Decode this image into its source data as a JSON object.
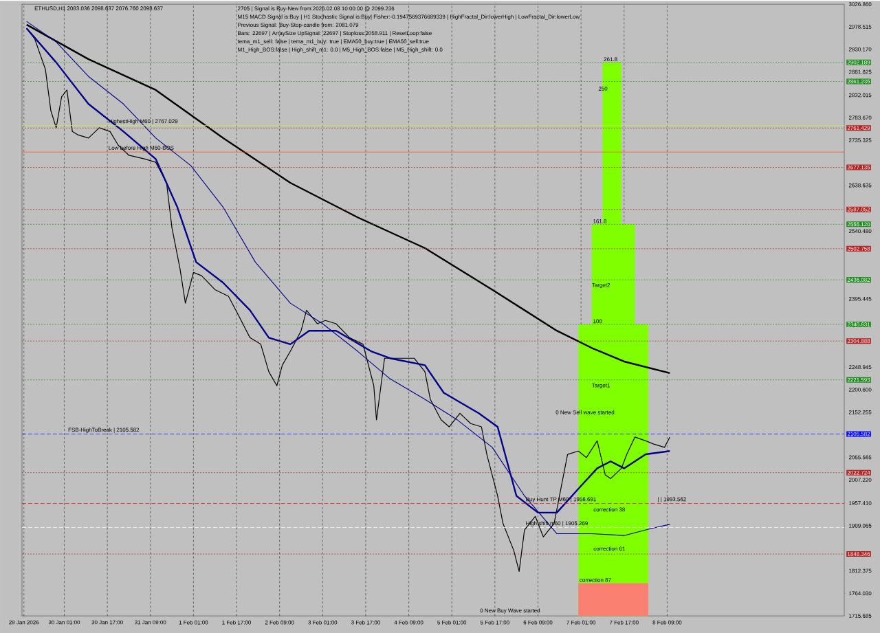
{
  "chart_data": {
    "type": "line",
    "title": "ETHUSD,H1  2083.036 2098.637 2076.760 2098.637",
    "xlim": [
      "2026-01-29T09:18",
      "2026-02-11T02:48"
    ],
    "ylim": [
      1715.685,
      3026.86
    ],
    "xticks": [
      {
        "value": "2026-01-29T10:00",
        "label": "29 Jan 2026"
      },
      {
        "value": "2026-01-30T01:00",
        "label": "30 Jan 01:00"
      },
      {
        "value": "2026-01-30T17:00",
        "label": "30 Jan 17:00"
      },
      {
        "value": "2026-01-31T09:00",
        "label": "31 Jan 09:00"
      },
      {
        "value": "2026-02-01T01:00",
        "label": "1 Feb 01:00"
      },
      {
        "value": "2026-02-01T17:00",
        "label": "1 Feb 17:00"
      },
      {
        "value": "2026-02-02T09:00",
        "label": "2 Feb 09:00"
      },
      {
        "value": "2026-02-03T01:00",
        "label": "3 Feb 01:00"
      },
      {
        "value": "2026-02-03T17:00",
        "label": "3 Feb 17:00"
      },
      {
        "value": "2026-02-04T09:00",
        "label": "4 Feb 09:00"
      },
      {
        "value": "2026-02-05T01:00",
        "label": "5 Feb 01:00"
      },
      {
        "value": "2026-02-05T17:00",
        "label": "5 Feb 17:00"
      },
      {
        "value": "2026-02-06T09:00",
        "label": "6 Feb 09:00"
      },
      {
        "value": "2026-02-07T01:00",
        "label": "7 Feb 01:00"
      },
      {
        "value": "2026-02-07T17:00",
        "label": "7 Feb 17:00"
      },
      {
        "value": "2026-02-08T09:00",
        "label": "8 Feb 09:00"
      }
    ],
    "yticks": [
      1715.685,
      {
        "value": 1764.03,
        "label": "1764.030"
      },
      1812.375,
      1909.065,
      {
        "value": 1957.41,
        "label": "1957.410"
      },
      {
        "value": 2007.22,
        "label": "2007.220"
      },
      2055.565,
      2152.255,
      {
        "value": 2200.6,
        "label": "2200.600"
      },
      2248.945,
      2395.445,
      {
        "value": 2540.48,
        "label": "2540.480"
      },
      2638.635,
      2735.325,
      {
        "value": 2783.67,
        "label": "2783.670"
      },
      2832.015,
      2881.825,
      {
        "value": 2930.17,
        "label": "2930.170"
      },
      2978.515,
      {
        "value": 3026.86,
        "label": "3026.860"
      }
    ],
    "grid": "x",
    "marker": "none",
    "series": [
      {
        "type": "area",
        "color": "#7fff00",
        "x": [
          "2026-02-07T00:00",
          "2026-02-07T05:00",
          "2026-02-07T05:00",
          "2026-02-07T09:00",
          "2026-02-07T09:00",
          "2026-02-07T16:00",
          "2026-02-07T16:00",
          "2026-02-07T21:00",
          "2026-02-07T21:00",
          "2026-02-08T02:00"
        ],
        "values": [
          2340.631,
          2340.631,
          2555.12,
          2555.12,
          2902.189,
          2902.189,
          2555.12,
          2555.12,
          2340.631,
          2340.631
        ]
      },
      {
        "type": "area",
        "color": "#fa8072",
        "x": [
          "2026-02-07T00:00",
          "2026-02-08T02:00"
        ],
        "values": [
          1786,
          1786
        ]
      },
      {
        "color": "#000000",
        "x": [
          "2026-01-29T11:00",
          "2026-01-29T14:00",
          "2026-01-29T18:00",
          "2026-01-29T20:00",
          "2026-01-29T22:00",
          "2026-01-30T00:00",
          "2026-01-30T02:00",
          "2026-01-30T04:00",
          "2026-01-30T06:00",
          "2026-01-30T10:00",
          "2026-01-30T14:00",
          "2026-01-30T18:00",
          "2026-01-30T21:00",
          "2026-01-31T01:00",
          "2026-01-31T07:00",
          "2026-01-31T11:00",
          "2026-01-31T15:00",
          "2026-01-31T17:00",
          "2026-01-31T20:00",
          "2026-01-31T22:00",
          "2026-02-01T01:00",
          "2026-02-01T04:00",
          "2026-02-01T09:00",
          "2026-02-01T14:00",
          "2026-02-01T18:00",
          "2026-02-01T22:00",
          "2026-02-02T02:00",
          "2026-02-02T05:00",
          "2026-02-02T08:00",
          "2026-02-02T10:00",
          "2026-02-02T13:00",
          "2026-02-02T17:00",
          "2026-02-02T19:00",
          "2026-02-02T23:00",
          "2026-02-03T02:00",
          "2026-02-03T06:00",
          "2026-02-03T11:00",
          "2026-02-03T16:00",
          "2026-02-03T20:00",
          "2026-02-03T21:00",
          "2026-02-04T00:00",
          "2026-02-04T05:00",
          "2026-02-04T11:00",
          "2026-02-04T15:00",
          "2026-02-04T17:00",
          "2026-02-04T21:00",
          "2026-02-05T00:00",
          "2026-02-05T04:00",
          "2026-02-05T08:00",
          "2026-02-05T12:00",
          "2026-02-05T14:00",
          "2026-02-05T18:00",
          "2026-02-05T20:00",
          "2026-02-06T00:00",
          "2026-02-06T02:00",
          "2026-02-06T04:00",
          "2026-02-06T08:00",
          "2026-02-06T11:00",
          "2026-02-06T15:00",
          "2026-02-06T18:00",
          "2026-02-06T20:00",
          "2026-02-07T00:00",
          "2026-02-07T03:00",
          "2026-02-07T07:00",
          "2026-02-07T10:00",
          "2026-02-07T12:00",
          "2026-02-07T16:00",
          "2026-02-07T18:00",
          "2026-02-07T21:00",
          "2026-02-08T01:00",
          "2026-02-08T04:00",
          "2026-02-08T08:00",
          "2026-02-08T10:00"
        ],
        "values": [
          2975,
          2953,
          2887,
          2799,
          2762,
          2828,
          2843,
          2754,
          2747,
          2740,
          2762,
          2754,
          2725,
          2703,
          2695,
          2688,
          2644,
          2548,
          2460,
          2386,
          2452,
          2445,
          2415,
          2401,
          2357,
          2312,
          2298,
          2239,
          2209,
          2253,
          2283,
          2327,
          2371,
          2342,
          2349,
          2342,
          2312,
          2298,
          2209,
          2136,
          2268,
          2268,
          2268,
          2239,
          2180,
          2136,
          2121,
          2150,
          2128,
          2121,
          2062,
          1973,
          1914,
          1856,
          1811,
          1900,
          1929,
          1885,
          1914,
          2003,
          2062,
          2069,
          2055,
          2091,
          2018,
          2010,
          2032,
          2062,
          2099,
          2091,
          2084,
          2077,
          2099
        ]
      },
      {
        "color": "#000000",
        "x": [
          "2026-01-29T11:00",
          "2026-01-30T10:00",
          "2026-01-31T11:00",
          "2026-02-01T12:00",
          "2026-02-02T13:00",
          "2026-02-03T14:00",
          "2026-02-04T15:00",
          "2026-02-05T16:00",
          "2026-02-06T16:00",
          "2026-02-07T05:00",
          "2026-02-07T17:00",
          "2026-02-08T10:00"
        ],
        "values": [
          2983,
          2909,
          2843,
          2740,
          2644,
          2570,
          2504,
          2415,
          2327,
          2290,
          2261,
          2236
        ]
      },
      {
        "color": "#00008b",
        "x": [
          "2026-01-29T11:00",
          "2026-01-29T22:00",
          "2026-01-30T10:00",
          "2026-01-30T23:00",
          "2026-01-31T11:00",
          "2026-01-31T19:00",
          "2026-02-01T02:00",
          "2026-02-01T12:00",
          "2026-02-01T22:00",
          "2026-02-02T05:00",
          "2026-02-02T13:00",
          "2026-02-02T20:00",
          "2026-02-03T06:00",
          "2026-02-03T19:00",
          "2026-02-04T02:00",
          "2026-02-04T15:00",
          "2026-02-04T22:00",
          "2026-02-05T11:00",
          "2026-02-05T18:00",
          "2026-02-06T01:00",
          "2026-02-06T09:00",
          "2026-02-06T16:00",
          "2026-02-07T00:00",
          "2026-02-07T07:00",
          "2026-02-07T12:00",
          "2026-02-07T17:00",
          "2026-02-08T01:00",
          "2026-02-08T10:00"
        ],
        "values": [
          2975,
          2902,
          2813,
          2754,
          2695,
          2592,
          2474,
          2430,
          2371,
          2312,
          2298,
          2327,
          2327,
          2283,
          2268,
          2253,
          2194,
          2150,
          2121,
          1973,
          1937,
          1937,
          1988,
          2032,
          2047,
          2032,
          2062,
          2069
        ]
      },
      {
        "color": "#00008b",
        "x": [
          "2026-01-29T11:00",
          "2026-01-29T22:00",
          "2026-01-30T10:00",
          "2026-01-30T23:00",
          "2026-01-31T11:00",
          "2026-02-01T00:00",
          "2026-02-01T12:00",
          "2026-02-02T00:00",
          "2026-02-02T13:00",
          "2026-02-03T01:00",
          "2026-02-03T14:00",
          "2026-02-04T02:00",
          "2026-02-04T15:00",
          "2026-02-05T03:00",
          "2026-02-05T16:00",
          "2026-02-06T04:00",
          "2026-02-06T16:00",
          "2026-02-07T05:00",
          "2026-02-07T17:00",
          "2026-02-08T03:00",
          "2026-02-08T10:00"
        ],
        "values": [
          2990,
          2946,
          2872,
          2813,
          2740,
          2681,
          2592,
          2474,
          2386,
          2342,
          2283,
          2224,
          2180,
          2136,
          2077,
          1973,
          1892,
          1892,
          1888,
          1903,
          1912
        ]
      }
    ],
    "ref_lines": [
      {
        "axis": "y",
        "value": 2902.189,
        "label": "2902.189",
        "color": "#228b22",
        "line_style": "dotted"
      },
      {
        "axis": "y",
        "value": 2861.235,
        "label": "2861.235",
        "color": "#228b22",
        "line_style": "dotted"
      },
      {
        "axis": "y",
        "value": 2767.029,
        "color": "#adff2f",
        "line_style": "solid"
      },
      {
        "axis": "y",
        "value": 2761.429,
        "label": "2761.429",
        "color": "#b22222",
        "line_style": "dotted"
      },
      {
        "axis": "y",
        "value": 2710,
        "color": "#ff4500",
        "line_style": "solid"
      },
      {
        "axis": "y",
        "value": 2677.135,
        "label": "2677.135",
        "color": "#b22222",
        "line_style": "dotted"
      },
      {
        "axis": "y",
        "value": 2587.052,
        "label": "2587.052",
        "color": "#b22222",
        "line_style": "dotted"
      },
      {
        "axis": "y",
        "value": 2555.12,
        "label": "2555.120",
        "color": "#228b22",
        "line_style": "dotted"
      },
      {
        "axis": "y",
        "value": 2502.758,
        "label": "2502.758",
        "color": "#b22222",
        "line_style": "dotted"
      },
      {
        "axis": "y",
        "value": 2436.082,
        "label": "2436.082",
        "color": "#228b22",
        "line_style": "dotted"
      },
      {
        "axis": "y",
        "value": 2340.631,
        "label": "2340.631",
        "color": "#228b22",
        "line_style": "dotted"
      },
      {
        "axis": "y",
        "value": 2304.888,
        "label": "2304.888",
        "color": "#b22222",
        "line_style": "dotted"
      },
      {
        "axis": "y",
        "value": 2221.593,
        "label": "2221.593",
        "color": "#228b22",
        "line_style": "dotted"
      },
      {
        "axis": "y",
        "value": 2105.582,
        "label": "2105.582",
        "color": "#0000ff",
        "line_style": "dashed"
      },
      {
        "axis": "y",
        "value": 2022.724,
        "label": "2022.724",
        "color": "#b22222",
        "line_style": "dotted"
      },
      {
        "axis": "y",
        "value": 1956.691,
        "color": "#ff0000",
        "line_style": "dashed"
      },
      {
        "axis": "y",
        "value": 1905.269,
        "color": "#ffffff",
        "line_style": "dashed"
      },
      {
        "axis": "y",
        "value": 1848.346,
        "label": "1848.346",
        "color": "#b22222",
        "line_style": "dotted"
      }
    ],
    "annotations": [
      "2705 | Signal is Buy-New from:2026.02.08 10:00:00 @ 2099.236",
      "M15 MACD Signal is:Buy | H1 Stochastic Signal is:Buy| Fisher:-0.1947569376689339 | HighFractal_Dir:lowerHigh | LowFractal_Dir:lowerLow",
      "Previous Signal: Buy-Stop-candle from: 2081.079",
      "Bars: 22697 | ArraySize UpSignal: 22697 | Stoploss:2058.911 | ResetLoop:false",
      "tema_m1_sell: false | tema_m1_buy: true | EMA50_buy:true | EMA50_sell:true",
      "M1_High_BOS:false | High_shift_m1: 0.0 | M5_High_BOS:false | M5_High_shift: 0.0",
      "250",
      "Target2",
      "Target1",
      "0 New Sell wave started",
      "correction 38",
      "correction 61",
      "0 New Buy Wave started",
      {
        "text": "HighestHigh   M60 | 2767.029",
        "x": "2026-01-30T17:00",
        "y": 2767.029
      },
      {
        "text": "Low before High   M60-BOS",
        "x": "2026-01-30T17:00",
        "y": 2710
      },
      {
        "text": "FSB-HighToBreak | 2105.582",
        "x": "2026-01-30T02:00",
        "y": 2105.582
      },
      {
        "text": "261.8",
        "x": "2026-02-07T09:00",
        "y": 2902.189
      },
      {
        "text": "161.8",
        "x": "2026-02-07T05:00",
        "y": 2555.12
      },
      {
        "text": "100",
        "x": "2026-02-07T05:00",
        "y": 2340.631
      },
      {
        "text": "Buy Hunt TP M60 | 1956.691",
        "x": "2026-02-06T04:00",
        "y": 1956.691
      },
      {
        "text": "| | 1993.562",
        "x": "2026-02-08T05:00",
        "y": 1956.691
      },
      {
        "text": "High shift m60 | 1905.269",
        "x": "2026-02-06T04:00",
        "y": 1905.269
      },
      {
        "text": "correction 87",
        "x": "2026-02-07T00:00",
        "y": 1786
      }
    ]
  }
}
